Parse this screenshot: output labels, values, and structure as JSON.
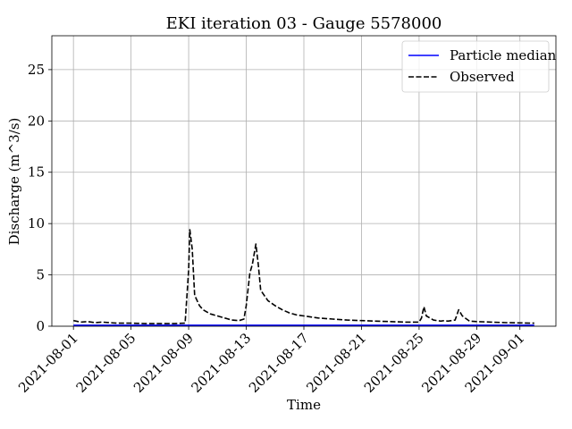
{
  "chart_data": {
    "type": "line",
    "title": "EKI iteration 03 - Gauge 5578000",
    "xlabel": "Time",
    "ylabel": "Discharge (m^3/s)",
    "x_range": [
      "2021-07-30T12:00",
      "2021-09-03T12:00"
    ],
    "ylim": [
      0,
      28.3
    ],
    "x_ticks": [
      "2021-08-01",
      "2021-08-05",
      "2021-08-09",
      "2021-08-13",
      "2021-08-17",
      "2021-08-21",
      "2021-08-25",
      "2021-08-29",
      "2021-09-01"
    ],
    "y_ticks": [
      0,
      5,
      10,
      15,
      20,
      25
    ],
    "grid": true,
    "legend_position": "top-right",
    "series": [
      {
        "name": "Particle median",
        "color": "#0000ff",
        "style": "solid",
        "points": [
          [
            "2021-08-01T00:00",
            0.1
          ],
          [
            "2021-09-02T00:00",
            0.1
          ]
        ]
      },
      {
        "name": "Observed",
        "color": "#000000",
        "style": "dashed",
        "points": [
          [
            "2021-08-01T00:00",
            0.55
          ],
          [
            "2021-08-01T12:00",
            0.4
          ],
          [
            "2021-08-02T00:00",
            0.45
          ],
          [
            "2021-08-02T12:00",
            0.35
          ],
          [
            "2021-08-03T00:00",
            0.4
          ],
          [
            "2021-08-03T12:00",
            0.35
          ],
          [
            "2021-08-04T00:00",
            0.3
          ],
          [
            "2021-08-05T00:00",
            0.3
          ],
          [
            "2021-08-05T12:00",
            0.28
          ],
          [
            "2021-08-06T00:00",
            0.25
          ],
          [
            "2021-08-07T00:00",
            0.25
          ],
          [
            "2021-08-08T00:00",
            0.25
          ],
          [
            "2021-08-08T18:00",
            0.3
          ],
          [
            "2021-08-09T00:00",
            5.5
          ],
          [
            "2021-08-09T02:00",
            9.4
          ],
          [
            "2021-08-09T06:00",
            7.5
          ],
          [
            "2021-08-09T10:00",
            3.0
          ],
          [
            "2021-08-09T18:00",
            2.0
          ],
          [
            "2021-08-10T00:00",
            1.6
          ],
          [
            "2021-08-10T12:00",
            1.2
          ],
          [
            "2021-08-11T00:00",
            1.0
          ],
          [
            "2021-08-11T12:00",
            0.8
          ],
          [
            "2021-08-12T00:00",
            0.6
          ],
          [
            "2021-08-12T12:00",
            0.55
          ],
          [
            "2021-08-12T20:00",
            0.7
          ],
          [
            "2021-08-13T00:00",
            2.0
          ],
          [
            "2021-08-13T06:00",
            5.2
          ],
          [
            "2021-08-13T10:00",
            6.0
          ],
          [
            "2021-08-13T16:00",
            8.0
          ],
          [
            "2021-08-13T20:00",
            6.0
          ],
          [
            "2021-08-14T00:00",
            3.5
          ],
          [
            "2021-08-14T12:00",
            2.5
          ],
          [
            "2021-08-15T00:00",
            2.0
          ],
          [
            "2021-08-15T12:00",
            1.6
          ],
          [
            "2021-08-16T00:00",
            1.3
          ],
          [
            "2021-08-16T12:00",
            1.1
          ],
          [
            "2021-08-17T00:00",
            1.0
          ],
          [
            "2021-08-17T12:00",
            0.9
          ],
          [
            "2021-08-18T00:00",
            0.8
          ],
          [
            "2021-08-18T12:00",
            0.75
          ],
          [
            "2021-08-19T00:00",
            0.7
          ],
          [
            "2021-08-20T00:00",
            0.6
          ],
          [
            "2021-08-21T00:00",
            0.55
          ],
          [
            "2021-08-22T00:00",
            0.5
          ],
          [
            "2021-08-23T00:00",
            0.45
          ],
          [
            "2021-08-24T00:00",
            0.4
          ],
          [
            "2021-08-25T00:00",
            0.4
          ],
          [
            "2021-08-25T04:00",
            0.8
          ],
          [
            "2021-08-25T08:00",
            1.9
          ],
          [
            "2021-08-25T12:00",
            1.0
          ],
          [
            "2021-08-25T18:00",
            0.8
          ],
          [
            "2021-08-26T00:00",
            0.6
          ],
          [
            "2021-08-26T12:00",
            0.5
          ],
          [
            "2021-08-26T18:00",
            0.55
          ],
          [
            "2021-08-27T00:00",
            0.5
          ],
          [
            "2021-08-27T12:00",
            0.6
          ],
          [
            "2021-08-27T18:00",
            1.6
          ],
          [
            "2021-08-28T00:00",
            1.0
          ],
          [
            "2021-08-28T12:00",
            0.5
          ],
          [
            "2021-08-29T00:00",
            0.45
          ],
          [
            "2021-08-30T00:00",
            0.4
          ],
          [
            "2021-08-31T00:00",
            0.35
          ],
          [
            "2021-09-01T00:00",
            0.32
          ],
          [
            "2021-09-02T00:00",
            0.3
          ]
        ]
      }
    ]
  }
}
